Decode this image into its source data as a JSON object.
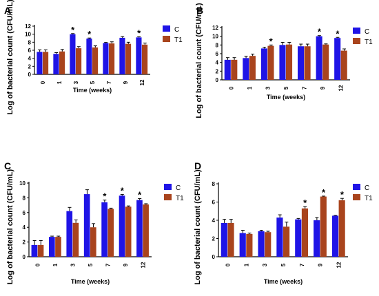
{
  "figure": {
    "ylabel": "Log of bacterial count (CFU/mL)",
    "xlabel": "Time (weeks)"
  },
  "colors": {
    "C": "#1f14e6",
    "T1": "#a9441d",
    "error": "#000000"
  },
  "chart_data": [
    {
      "panel": "A",
      "type": "bar",
      "categories": [
        "0",
        "1",
        "3",
        "5",
        "7",
        "9",
        "12"
      ],
      "xlabel": "Time (weeks)",
      "ylabel": "Log of bacterial count (CFU/mL)",
      "ylim": [
        0,
        12
      ],
      "yticks": [
        0,
        2,
        4,
        6,
        8,
        10,
        12
      ],
      "legend_position": "top-right",
      "series": [
        {
          "name": "C",
          "values": [
            5.6,
            5.1,
            10.0,
            8.9,
            7.8,
            9.1,
            9.2
          ],
          "errors": [
            0.5,
            0.3,
            0.15,
            0.15,
            0.15,
            0.3,
            0.15
          ]
        },
        {
          "name": "T1",
          "values": [
            5.6,
            5.7,
            6.5,
            6.7,
            7.7,
            7.6,
            7.4
          ],
          "errors": [
            0.5,
            0.5,
            0.4,
            0.4,
            0.4,
            0.4,
            0.4
          ]
        }
      ],
      "significance": [
        2,
        3,
        6
      ]
    },
    {
      "panel": "B",
      "type": "bar",
      "categories": [
        "0",
        "1",
        "3",
        "5",
        "7",
        "9",
        "12"
      ],
      "xlabel": "Time (weeks)",
      "ylabel": "Log of bacterial count (CFU/mL)",
      "ylim": [
        0,
        12
      ],
      "yticks": [
        0,
        2,
        4,
        6,
        8,
        10,
        12
      ],
      "legend_position": "top-right",
      "series": [
        {
          "name": "C",
          "values": [
            4.6,
            5.0,
            7.2,
            8.0,
            7.7,
            10.0,
            9.6
          ],
          "errors": [
            0.5,
            0.4,
            0.3,
            0.6,
            0.5,
            0.15,
            0.15
          ]
        },
        {
          "name": "T1",
          "values": [
            4.6,
            5.5,
            7.8,
            8.1,
            7.7,
            8.1,
            6.7
          ],
          "errors": [
            0.5,
            0.4,
            0.2,
            0.5,
            0.5,
            0.15,
            0.4
          ]
        }
      ],
      "significance": [
        2,
        5,
        6
      ]
    },
    {
      "panel": "C",
      "type": "bar",
      "categories": [
        "0",
        "1",
        "3",
        "5",
        "7",
        "9",
        "12"
      ],
      "xlabel": "Time (weeks)",
      "ylabel": "Log of bacterial count (CFU/mL)",
      "ylim": [
        0,
        10
      ],
      "yticks": [
        0,
        2,
        4,
        6,
        8,
        10
      ],
      "legend_position": "top-right",
      "series": [
        {
          "name": "C",
          "values": [
            1.6,
            2.7,
            6.2,
            8.5,
            7.4,
            8.3,
            7.7
          ],
          "errors": [
            0.6,
            0.1,
            0.5,
            0.6,
            0.3,
            0.15,
            0.2
          ]
        },
        {
          "name": "T1",
          "values": [
            1.6,
            2.7,
            4.6,
            4.0,
            6.5,
            6.8,
            7.1
          ],
          "errors": [
            0.6,
            0.1,
            0.4,
            0.5,
            0.1,
            0.1,
            0.1
          ]
        }
      ],
      "significance": [
        4,
        5,
        6
      ]
    },
    {
      "panel": "D",
      "type": "bar",
      "categories": [
        "0",
        "1",
        "3",
        "5",
        "7",
        "9",
        "12"
      ],
      "xlabel": "Time (weeks)",
      "ylabel": "Log of bacterial count (CFU/mL)",
      "ylim": [
        0,
        8
      ],
      "yticks": [
        0,
        2,
        4,
        6,
        8
      ],
      "legend_position": "top-right",
      "series": [
        {
          "name": "C",
          "values": [
            3.7,
            2.6,
            2.8,
            4.3,
            4.1,
            4.0,
            4.5
          ],
          "errors": [
            0.4,
            0.3,
            0.1,
            0.3,
            0.1,
            0.3,
            0.05
          ]
        },
        {
          "name": "T1",
          "values": [
            3.7,
            2.5,
            2.7,
            3.3,
            5.3,
            6.6,
            6.2
          ],
          "errors": [
            0.4,
            0.1,
            0.1,
            0.5,
            0.2,
            0.05,
            0.2
          ]
        }
      ],
      "significance": [
        4,
        5,
        6
      ]
    }
  ]
}
